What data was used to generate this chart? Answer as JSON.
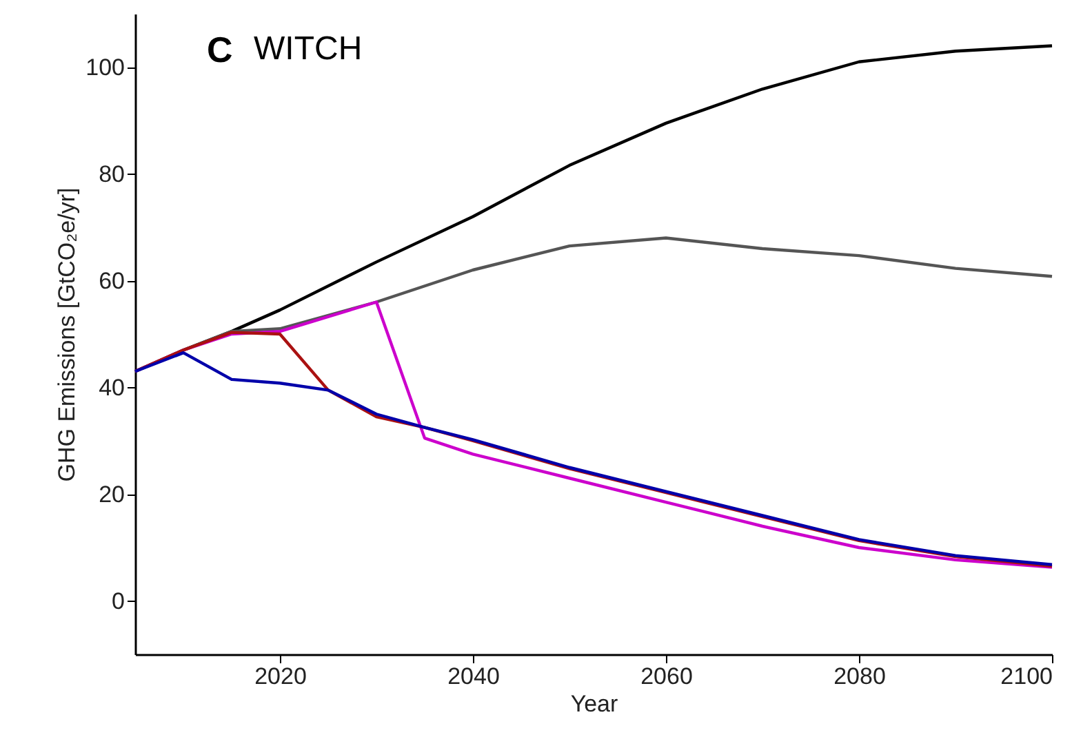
{
  "chart_data": {
    "type": "line",
    "title": "WITCH",
    "annotations": [
      "C"
    ],
    "xlabel": "Year",
    "ylabel": "GHG Emissions [GtCO₂e/yr]",
    "xlim": [
      2005,
      2100
    ],
    "xticks": [
      2020,
      2040,
      2060,
      2080,
      2100
    ],
    "ylim": [
      -10,
      110
    ],
    "yticks": [
      0,
      20,
      40,
      60,
      80,
      100
    ],
    "grid": false,
    "marker": "none",
    "line_style": "solid",
    "series": [
      {
        "color": "#000000",
        "x": [
          2005,
          2010,
          2015,
          2020,
          2030,
          2040,
          2050,
          2060,
          2070,
          2080,
          2090,
          2100
        ],
        "values": [
          43,
          47,
          50.5,
          54.5,
          63.5,
          72,
          81.6,
          89.5,
          95.9,
          101,
          103,
          104
        ]
      },
      {
        "color": "#555555",
        "x": [
          2005,
          2010,
          2015,
          2020,
          2030,
          2035,
          2040,
          2050,
          2060,
          2070,
          2080,
          2090,
          2100
        ],
        "values": [
          43,
          47,
          50.5,
          51,
          56,
          59,
          62,
          66.5,
          68,
          66,
          64.7,
          62.3,
          60.8
        ]
      },
      {
        "color": "#cc00cc",
        "x": [
          2005,
          2010,
          2015,
          2020,
          2030,
          2035,
          2040,
          2050,
          2060,
          2070,
          2080,
          2090,
          2100
        ],
        "values": [
          43,
          47,
          50,
          50.5,
          56,
          30.5,
          27.5,
          23,
          18.5,
          14,
          10,
          7.7,
          6.3
        ]
      },
      {
        "color": "#aa1111",
        "x": [
          2005,
          2010,
          2015,
          2020,
          2025,
          2030,
          2035,
          2040,
          2050,
          2060,
          2070,
          2080,
          2090,
          2100
        ],
        "values": [
          43,
          47,
          50.3,
          50,
          39.5,
          34.5,
          32.5,
          30,
          24.8,
          20.3,
          15.8,
          11.3,
          8.3,
          6.5
        ]
      },
      {
        "color": "#0000aa",
        "x": [
          2005,
          2010,
          2015,
          2020,
          2025,
          2030,
          2035,
          2040,
          2050,
          2060,
          2070,
          2080,
          2090,
          2100
        ],
        "values": [
          43,
          46.5,
          41.5,
          40.8,
          39.5,
          35,
          32.5,
          30.2,
          25,
          20.5,
          16,
          11.5,
          8.5,
          6.8
        ]
      }
    ]
  }
}
